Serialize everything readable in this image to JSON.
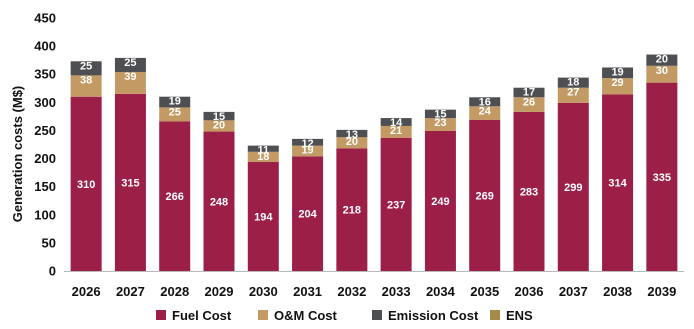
{
  "chart_data": {
    "type": "bar",
    "stacked": true,
    "ylabel": "Generation costs (M$)",
    "xlabel": "",
    "ylim": [
      0,
      450
    ],
    "yticks": [
      0,
      50,
      100,
      150,
      200,
      250,
      300,
      350,
      400,
      450
    ],
    "categories": [
      "2026",
      "2027",
      "2028",
      "2029",
      "2030",
      "2031",
      "2032",
      "2033",
      "2034",
      "2035",
      "2036",
      "2037",
      "2038",
      "2039"
    ],
    "series": [
      {
        "name": "Fuel Cost",
        "color": "#9c1f48",
        "values": [
          310,
          315,
          266,
          248,
          194,
          204,
          218,
          237,
          249,
          269,
          283,
          299,
          314,
          335
        ]
      },
      {
        "name": "O&M Cost",
        "color": "#c39a63",
        "values": [
          38,
          39,
          25,
          20,
          18,
          19,
          20,
          21,
          23,
          24,
          26,
          27,
          29,
          30
        ]
      },
      {
        "name": "Emission Cost",
        "color": "#4d4f53",
        "values": [
          25,
          25,
          19,
          15,
          11,
          12,
          13,
          14,
          15,
          16,
          17,
          18,
          19,
          20
        ]
      },
      {
        "name": "ENS",
        "color": "#a58b48",
        "values": [
          0,
          0,
          0,
          0,
          0,
          0,
          0,
          0,
          0,
          0,
          0,
          0,
          0,
          0
        ]
      }
    ],
    "grid": false,
    "legend_position": "bottom"
  }
}
